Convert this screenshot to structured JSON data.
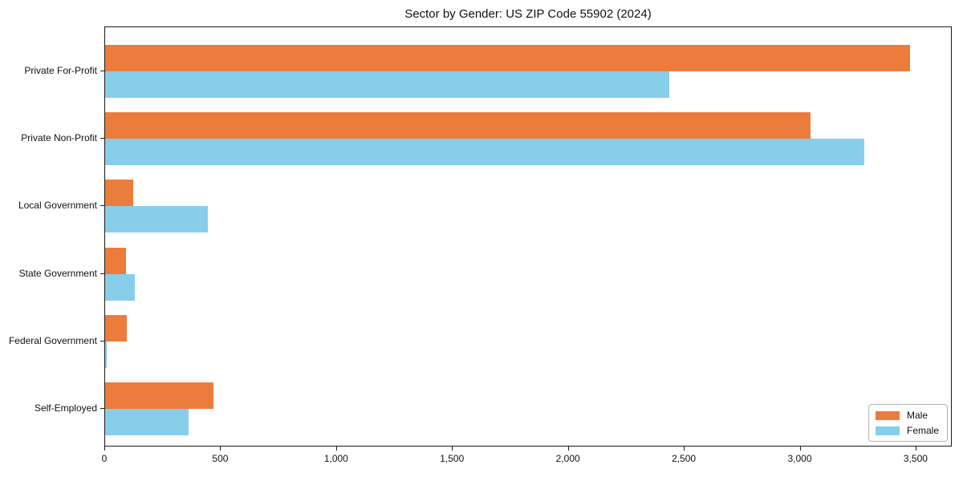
{
  "chart_data": {
    "type": "bar",
    "orientation": "horizontal",
    "title": "Sector by Gender: US ZIP Code 55902 (2024)",
    "categories": [
      "Private For-Profit",
      "Private Non-Profit",
      "Local Government",
      "State Government",
      "Federal Government",
      "Self-Employed"
    ],
    "series": [
      {
        "name": "Male",
        "color": "#EC7C3C",
        "values": [
          3480,
          3050,
          120,
          90,
          95,
          470
        ]
      },
      {
        "name": "Female",
        "color": "#87CEEB",
        "values": [
          2440,
          3280,
          445,
          130,
          7,
          360
        ]
      }
    ],
    "xlabel": "",
    "ylabel": "",
    "xlim": [
      0,
      3656
    ],
    "x_ticks": [
      0,
      500,
      1000,
      1500,
      2000,
      2500,
      3000,
      3500
    ],
    "x_tick_labels": [
      "0",
      "500",
      "1,000",
      "1,500",
      "2,000",
      "2,500",
      "3,000",
      "3,500"
    ],
    "grid": false,
    "legend": {
      "position": "lower right",
      "entries": [
        "Male",
        "Female"
      ]
    }
  }
}
